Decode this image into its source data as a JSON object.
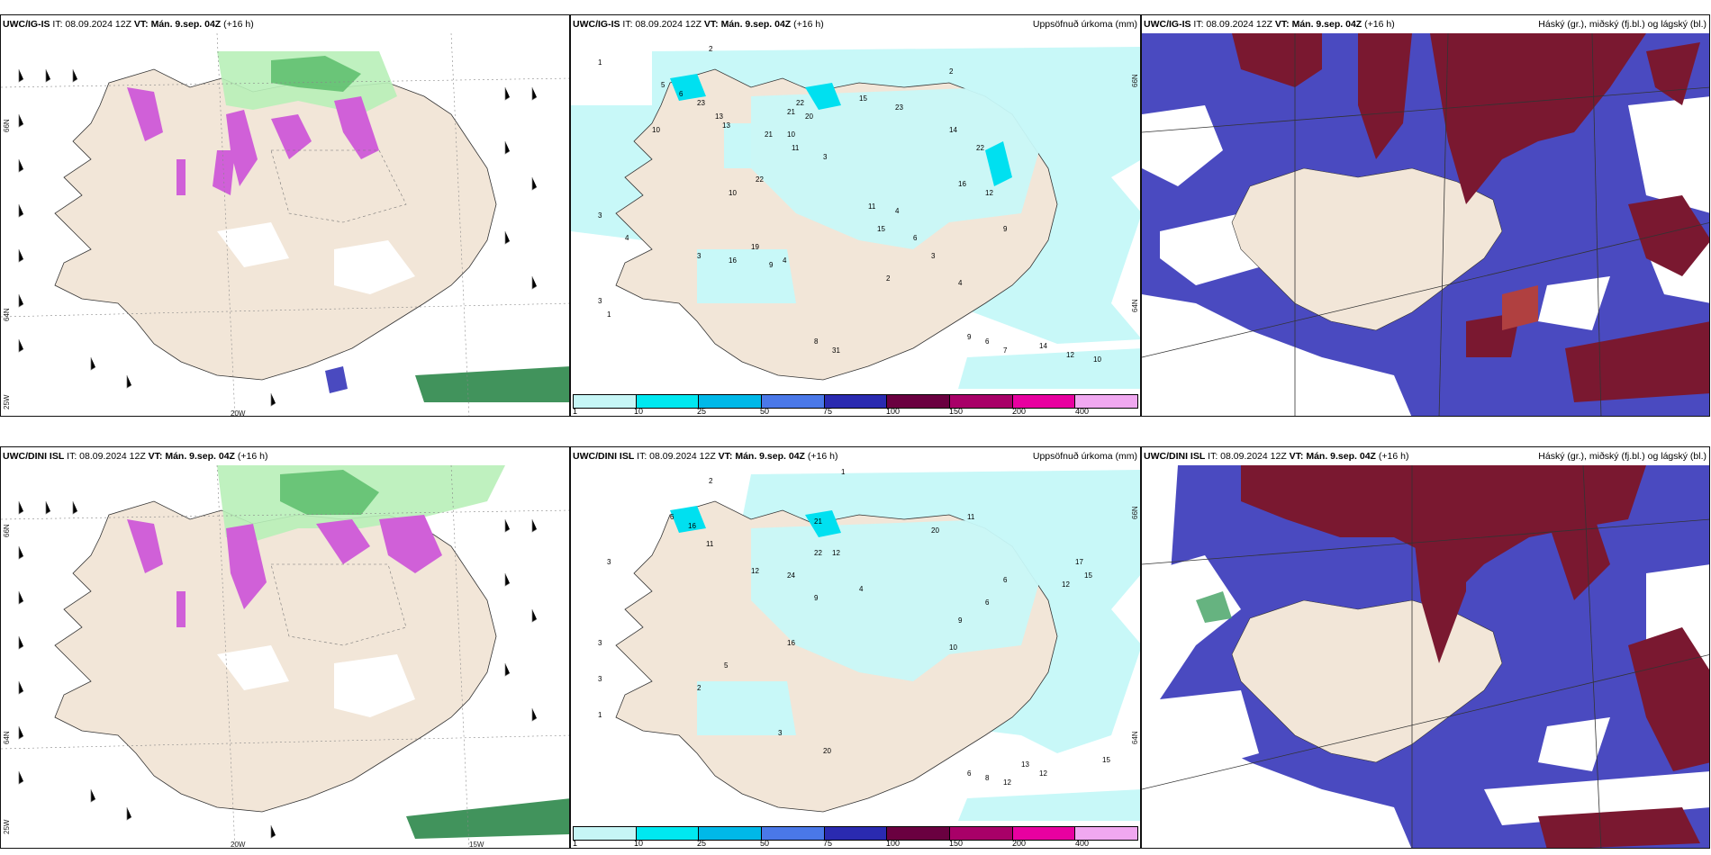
{
  "common": {
    "it_label": "IT: 08.09.2024 12Z",
    "vt_label": "VT:",
    "vt_value": "Mán. 9.sep. 04Z",
    "lead": "(+16 h)"
  },
  "panels": {
    "top_left": {
      "model": "UWC/IG-IS"
    },
    "top_mid": {
      "model": "UWC/IG-IS",
      "subtitle": "Uppsöfnuð úrkoma (mm)"
    },
    "top_right": {
      "model": "UWC/IG-IS",
      "subtitle": "Háský (gr.), miðský (fj.bl.) og lágský (bl.)"
    },
    "bottom_left": {
      "model": "UWC/DINI ISL"
    },
    "bottom_mid": {
      "model": "UWC/DINI ISL",
      "subtitle": "Uppsöfnuð úrkoma (mm)"
    },
    "bottom_right": {
      "model": "UWC/DINI ISL",
      "subtitle": "Háský (gr.), miðský (fj.bl.) og lágský (bl.)"
    }
  },
  "axis_labels": {
    "lat_66": "66N",
    "lat_64": "64N",
    "lon_25": "25W",
    "lon_20": "20W",
    "lon_15": "15W"
  },
  "colorbar": {
    "colors": [
      "#c6f6f6",
      "#00e8f0",
      "#00b8e8",
      "#4a78e8",
      "#2a2ab0",
      "#6a0040",
      "#a80068",
      "#e800a0",
      "#f0a8f0"
    ],
    "ticks": [
      "1",
      "10",
      "25",
      "50",
      "75",
      "100",
      "150",
      "200",
      "400"
    ]
  },
  "colors": {
    "land": "#f2e6d8",
    "precip_light": "#c8f8f8",
    "precip_mid": "#00e0f0",
    "green_light": "#b8f0b8",
    "green_dark": "#208040",
    "magenta": "#d060d8",
    "high_cloud": "#7a1830",
    "mid_cloud": "#4a4ac0",
    "low_cloud": "#5080e0"
  },
  "precip_labels_top": [
    "2",
    "1",
    "6",
    "23",
    "13",
    "13",
    "22",
    "21",
    "20",
    "15",
    "23",
    "2",
    "5",
    "10",
    "21",
    "10",
    "11",
    "3",
    "22",
    "3",
    "4",
    "3",
    "10",
    "16",
    "19",
    "9",
    "4",
    "11",
    "15",
    "4",
    "6",
    "14",
    "22",
    "16",
    "12",
    "3",
    "4",
    "9",
    "3",
    "2",
    "1",
    "9",
    "6",
    "7",
    "14",
    "12",
    "10",
    "31",
    "8"
  ],
  "precip_labels_bottom": [
    "2",
    "1",
    "6",
    "16",
    "11",
    "21",
    "12",
    "22",
    "20",
    "11",
    "3",
    "24",
    "12",
    "9",
    "3",
    "16",
    "10",
    "6",
    "17",
    "15",
    "12",
    "4",
    "6",
    "9",
    "3",
    "2",
    "5",
    "13",
    "12",
    "15",
    "6",
    "8",
    "12",
    "1",
    "3",
    "20"
  ]
}
